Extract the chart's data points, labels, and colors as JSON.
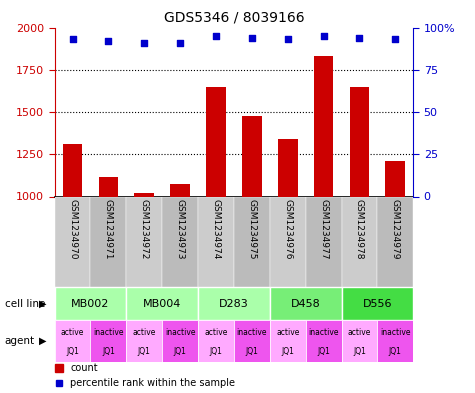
{
  "title": "GDS5346 / 8039166",
  "samples": [
    "GSM1234970",
    "GSM1234971",
    "GSM1234972",
    "GSM1234973",
    "GSM1234974",
    "GSM1234975",
    "GSM1234976",
    "GSM1234977",
    "GSM1234978",
    "GSM1234979"
  ],
  "counts": [
    1310,
    1115,
    1020,
    1075,
    1650,
    1475,
    1340,
    1830,
    1650,
    1210
  ],
  "percentiles": [
    93,
    92,
    91,
    91,
    95,
    94,
    93,
    95,
    94,
    93
  ],
  "ylim_left": [
    1000,
    2000
  ],
  "ylim_right": [
    0,
    100
  ],
  "yticks_left": [
    1000,
    1250,
    1500,
    1750,
    2000
  ],
  "yticks_right": [
    0,
    25,
    50,
    75,
    100
  ],
  "ytick_right_labels": [
    "0",
    "25",
    "50",
    "75",
    "100%"
  ],
  "bar_color": "#cc0000",
  "dot_color": "#0000cc",
  "cell_lines": [
    {
      "name": "MB002",
      "span": [
        0,
        2
      ],
      "color": "#aaffaa"
    },
    {
      "name": "MB004",
      "span": [
        2,
        4
      ],
      "color": "#aaffaa"
    },
    {
      "name": "D283",
      "span": [
        4,
        6
      ],
      "color": "#aaffaa"
    },
    {
      "name": "D458",
      "span": [
        6,
        8
      ],
      "color": "#77ee77"
    },
    {
      "name": "D556",
      "span": [
        8,
        10
      ],
      "color": "#44dd44"
    }
  ],
  "agents": [
    {
      "label_top": "active",
      "label_bot": "JQ1",
      "idx": 0,
      "bg": "#ffaaff"
    },
    {
      "label_top": "inactive",
      "label_bot": "JQ1",
      "idx": 1,
      "bg": "#ee55ee"
    },
    {
      "label_top": "active",
      "label_bot": "JQ1",
      "idx": 2,
      "bg": "#ffaaff"
    },
    {
      "label_top": "inactive",
      "label_bot": "JQ1",
      "idx": 3,
      "bg": "#ee55ee"
    },
    {
      "label_top": "active",
      "label_bot": "JQ1",
      "idx": 4,
      "bg": "#ffaaff"
    },
    {
      "label_top": "inactive",
      "label_bot": "JQ1",
      "idx": 5,
      "bg": "#ee55ee"
    },
    {
      "label_top": "active",
      "label_bot": "JQ1",
      "idx": 6,
      "bg": "#ffaaff"
    },
    {
      "label_top": "inactive",
      "label_bot": "JQ1",
      "idx": 7,
      "bg": "#ee55ee"
    },
    {
      "label_top": "active",
      "label_bot": "JQ1",
      "idx": 8,
      "bg": "#ffaaff"
    },
    {
      "label_top": "inactive",
      "label_bot": "JQ1",
      "idx": 9,
      "bg": "#ee55ee"
    }
  ],
  "bar_color_red": "#cc0000",
  "dot_color_blue": "#0000cc",
  "left_tick_color": "#cc0000",
  "right_tick_color": "#0000cc",
  "bar_width": 0.55,
  "sample_bg_even": "#cccccc",
  "sample_bg_odd": "#bbbbbb"
}
